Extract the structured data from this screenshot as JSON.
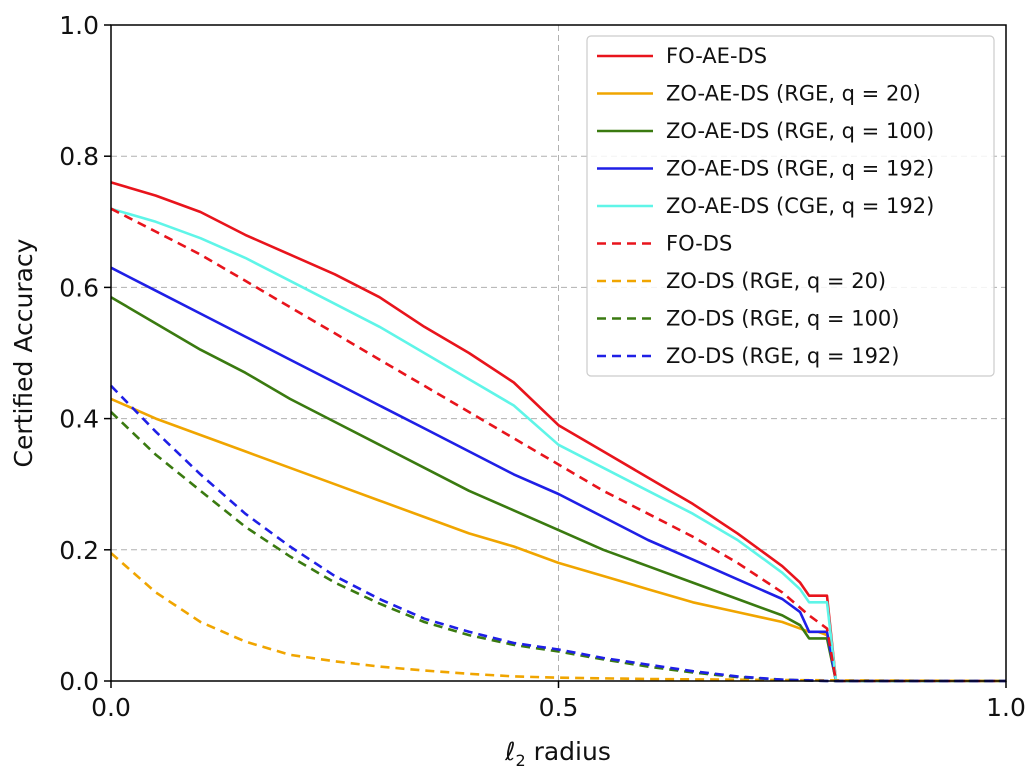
{
  "chart_data": {
    "type": "line",
    "title": "",
    "xlabel_symbol": "ℓ",
    "xlabel_sub": "2",
    "xlabel_rest": " radius",
    "ylabel": "Certified Accuracy",
    "xlim": [
      0.0,
      1.0
    ],
    "ylim": [
      0.0,
      1.0
    ],
    "x_ticks": [
      0.0,
      0.5,
      1.0
    ],
    "x_tick_labels": [
      "0.0",
      "0.5",
      "1.0"
    ],
    "y_ticks": [
      0.0,
      0.2,
      0.4,
      0.6,
      0.8,
      1.0
    ],
    "y_tick_labels": [
      "0.0",
      "0.2",
      "0.4",
      "0.6",
      "0.8",
      "1.0"
    ],
    "grid": true,
    "legend_position": "top-right",
    "series": [
      {
        "name": "FO-AE-DS",
        "color": "#e8141c",
        "dash": "solid",
        "points": [
          [
            0,
            0.76
          ],
          [
            0.05,
            0.74
          ],
          [
            0.1,
            0.715
          ],
          [
            0.15,
            0.68
          ],
          [
            0.2,
            0.65
          ],
          [
            0.25,
            0.62
          ],
          [
            0.3,
            0.585
          ],
          [
            0.35,
            0.54
          ],
          [
            0.4,
            0.5
          ],
          [
            0.45,
            0.455
          ],
          [
            0.5,
            0.39
          ],
          [
            0.55,
            0.35
          ],
          [
            0.6,
            0.31
          ],
          [
            0.65,
            0.27
          ],
          [
            0.7,
            0.225
          ],
          [
            0.73,
            0.195
          ],
          [
            0.75,
            0.175
          ],
          [
            0.77,
            0.15
          ],
          [
            0.78,
            0.13
          ],
          [
            0.8,
            0.13
          ],
          [
            0.8,
            0.13
          ],
          [
            0.81,
            0.0
          ],
          [
            1.0,
            0.0
          ]
        ]
      },
      {
        "name": "ZO-AE-DS (RGE, q = 20)",
        "color": "#f0a500",
        "dash": "solid",
        "points": [
          [
            0,
            0.43
          ],
          [
            0.05,
            0.4
          ],
          [
            0.1,
            0.375
          ],
          [
            0.15,
            0.35
          ],
          [
            0.2,
            0.325
          ],
          [
            0.25,
            0.3
          ],
          [
            0.3,
            0.275
          ],
          [
            0.35,
            0.25
          ],
          [
            0.4,
            0.225
          ],
          [
            0.45,
            0.205
          ],
          [
            0.5,
            0.18
          ],
          [
            0.55,
            0.16
          ],
          [
            0.6,
            0.14
          ],
          [
            0.65,
            0.12
          ],
          [
            0.7,
            0.105
          ],
          [
            0.75,
            0.09
          ],
          [
            0.78,
            0.075
          ],
          [
            0.79,
            0.075
          ],
          [
            0.8,
            0.07
          ],
          [
            0.81,
            0.0
          ],
          [
            1.0,
            0.0
          ]
        ]
      },
      {
        "name": "ZO-AE-DS (RGE, q = 100)",
        "color": "#3a7a10",
        "dash": "solid",
        "points": [
          [
            0,
            0.585
          ],
          [
            0.05,
            0.545
          ],
          [
            0.1,
            0.505
          ],
          [
            0.15,
            0.47
          ],
          [
            0.2,
            0.43
          ],
          [
            0.25,
            0.395
          ],
          [
            0.3,
            0.36
          ],
          [
            0.35,
            0.325
          ],
          [
            0.4,
            0.29
          ],
          [
            0.45,
            0.26
          ],
          [
            0.5,
            0.23
          ],
          [
            0.55,
            0.2
          ],
          [
            0.6,
            0.175
          ],
          [
            0.65,
            0.15
          ],
          [
            0.7,
            0.125
          ],
          [
            0.75,
            0.1
          ],
          [
            0.77,
            0.085
          ],
          [
            0.78,
            0.065
          ],
          [
            0.8,
            0.065
          ],
          [
            0.81,
            0.0
          ],
          [
            1.0,
            0.0
          ]
        ]
      },
      {
        "name": "ZO-AE-DS (RGE, q = 192)",
        "color": "#1f1fe6",
        "dash": "solid",
        "points": [
          [
            0,
            0.63
          ],
          [
            0.05,
            0.595
          ],
          [
            0.1,
            0.56
          ],
          [
            0.15,
            0.525
          ],
          [
            0.2,
            0.49
          ],
          [
            0.25,
            0.455
          ],
          [
            0.3,
            0.42
          ],
          [
            0.35,
            0.385
          ],
          [
            0.4,
            0.35
          ],
          [
            0.45,
            0.315
          ],
          [
            0.5,
            0.285
          ],
          [
            0.55,
            0.25
          ],
          [
            0.6,
            0.215
          ],
          [
            0.65,
            0.185
          ],
          [
            0.7,
            0.155
          ],
          [
            0.75,
            0.125
          ],
          [
            0.77,
            0.105
          ],
          [
            0.78,
            0.075
          ],
          [
            0.8,
            0.075
          ],
          [
            0.81,
            0.0
          ],
          [
            1.0,
            0.0
          ]
        ]
      },
      {
        "name": "ZO-AE-DS (CGE, q = 192)",
        "color": "#5ff5e8",
        "dash": "solid",
        "points": [
          [
            0,
            0.72
          ],
          [
            0.05,
            0.7
          ],
          [
            0.1,
            0.675
          ],
          [
            0.15,
            0.645
          ],
          [
            0.2,
            0.61
          ],
          [
            0.25,
            0.575
          ],
          [
            0.3,
            0.54
          ],
          [
            0.35,
            0.5
          ],
          [
            0.4,
            0.46
          ],
          [
            0.45,
            0.42
          ],
          [
            0.5,
            0.36
          ],
          [
            0.55,
            0.325
          ],
          [
            0.6,
            0.29
          ],
          [
            0.65,
            0.255
          ],
          [
            0.7,
            0.215
          ],
          [
            0.73,
            0.185
          ],
          [
            0.75,
            0.165
          ],
          [
            0.77,
            0.14
          ],
          [
            0.78,
            0.12
          ],
          [
            0.8,
            0.12
          ],
          [
            0.81,
            0.0
          ],
          [
            1.0,
            0.0
          ]
        ]
      },
      {
        "name": "FO-DS",
        "color": "#e8141c",
        "dash": "dashed",
        "points": [
          [
            0,
            0.72
          ],
          [
            0.05,
            0.685
          ],
          [
            0.1,
            0.65
          ],
          [
            0.15,
            0.61
          ],
          [
            0.2,
            0.57
          ],
          [
            0.25,
            0.53
          ],
          [
            0.3,
            0.49
          ],
          [
            0.35,
            0.45
          ],
          [
            0.4,
            0.41
          ],
          [
            0.45,
            0.37
          ],
          [
            0.5,
            0.33
          ],
          [
            0.55,
            0.29
          ],
          [
            0.6,
            0.255
          ],
          [
            0.65,
            0.22
          ],
          [
            0.7,
            0.18
          ],
          [
            0.75,
            0.135
          ],
          [
            0.78,
            0.1
          ],
          [
            0.8,
            0.08
          ],
          [
            0.81,
            0.0
          ],
          [
            1.0,
            0.0
          ]
        ]
      },
      {
        "name": "ZO-DS (RGE, q = 20)",
        "color": "#f0a500",
        "dash": "dashed",
        "points": [
          [
            0,
            0.195
          ],
          [
            0.05,
            0.135
          ],
          [
            0.1,
            0.09
          ],
          [
            0.15,
            0.06
          ],
          [
            0.2,
            0.04
          ],
          [
            0.25,
            0.03
          ],
          [
            0.3,
            0.022
          ],
          [
            0.35,
            0.016
          ],
          [
            0.4,
            0.011
          ],
          [
            0.45,
            0.007
          ],
          [
            0.5,
            0.005
          ],
          [
            0.6,
            0.003
          ],
          [
            0.7,
            0.002
          ],
          [
            0.8,
            0.001
          ],
          [
            1.0,
            0.0
          ]
        ]
      },
      {
        "name": "ZO-DS (RGE, q = 100)",
        "color": "#3a7a10",
        "dash": "dashed",
        "points": [
          [
            0,
            0.41
          ],
          [
            0.05,
            0.345
          ],
          [
            0.1,
            0.29
          ],
          [
            0.15,
            0.235
          ],
          [
            0.2,
            0.19
          ],
          [
            0.25,
            0.15
          ],
          [
            0.3,
            0.118
          ],
          [
            0.35,
            0.09
          ],
          [
            0.4,
            0.07
          ],
          [
            0.45,
            0.055
          ],
          [
            0.5,
            0.045
          ],
          [
            0.55,
            0.033
          ],
          [
            0.6,
            0.022
          ],
          [
            0.65,
            0.013
          ],
          [
            0.7,
            0.006
          ],
          [
            0.75,
            0.002
          ],
          [
            0.8,
            0.0
          ],
          [
            1.0,
            0.0
          ]
        ]
      },
      {
        "name": "ZO-DS (RGE, q = 192)",
        "color": "#1f1fe6",
        "dash": "dashed",
        "points": [
          [
            0,
            0.45
          ],
          [
            0.05,
            0.38
          ],
          [
            0.1,
            0.315
          ],
          [
            0.15,
            0.255
          ],
          [
            0.2,
            0.205
          ],
          [
            0.25,
            0.16
          ],
          [
            0.3,
            0.125
          ],
          [
            0.35,
            0.095
          ],
          [
            0.4,
            0.075
          ],
          [
            0.45,
            0.058
          ],
          [
            0.5,
            0.048
          ],
          [
            0.55,
            0.035
          ],
          [
            0.6,
            0.025
          ],
          [
            0.65,
            0.015
          ],
          [
            0.7,
            0.007
          ],
          [
            0.75,
            0.002
          ],
          [
            0.8,
            0.0
          ],
          [
            1.0,
            0.0
          ]
        ]
      }
    ]
  }
}
